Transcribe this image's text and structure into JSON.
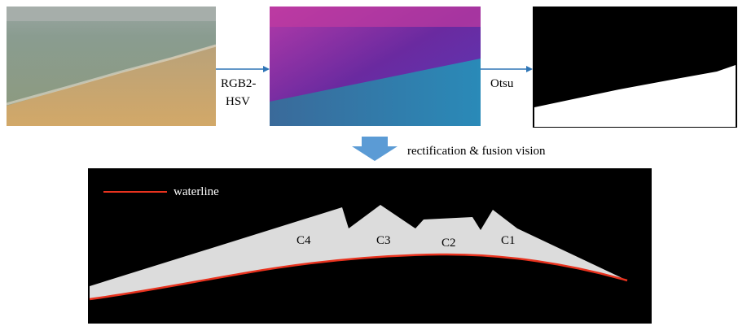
{
  "steps": {
    "conversion_label": [
      "RGB2-",
      "HSV"
    ],
    "threshold_label": "Otsu",
    "fusion_label": "rectification & fusion vision"
  },
  "result": {
    "legend": "waterline",
    "regions": [
      "C4",
      "C3",
      "C2",
      "C1"
    ]
  }
}
